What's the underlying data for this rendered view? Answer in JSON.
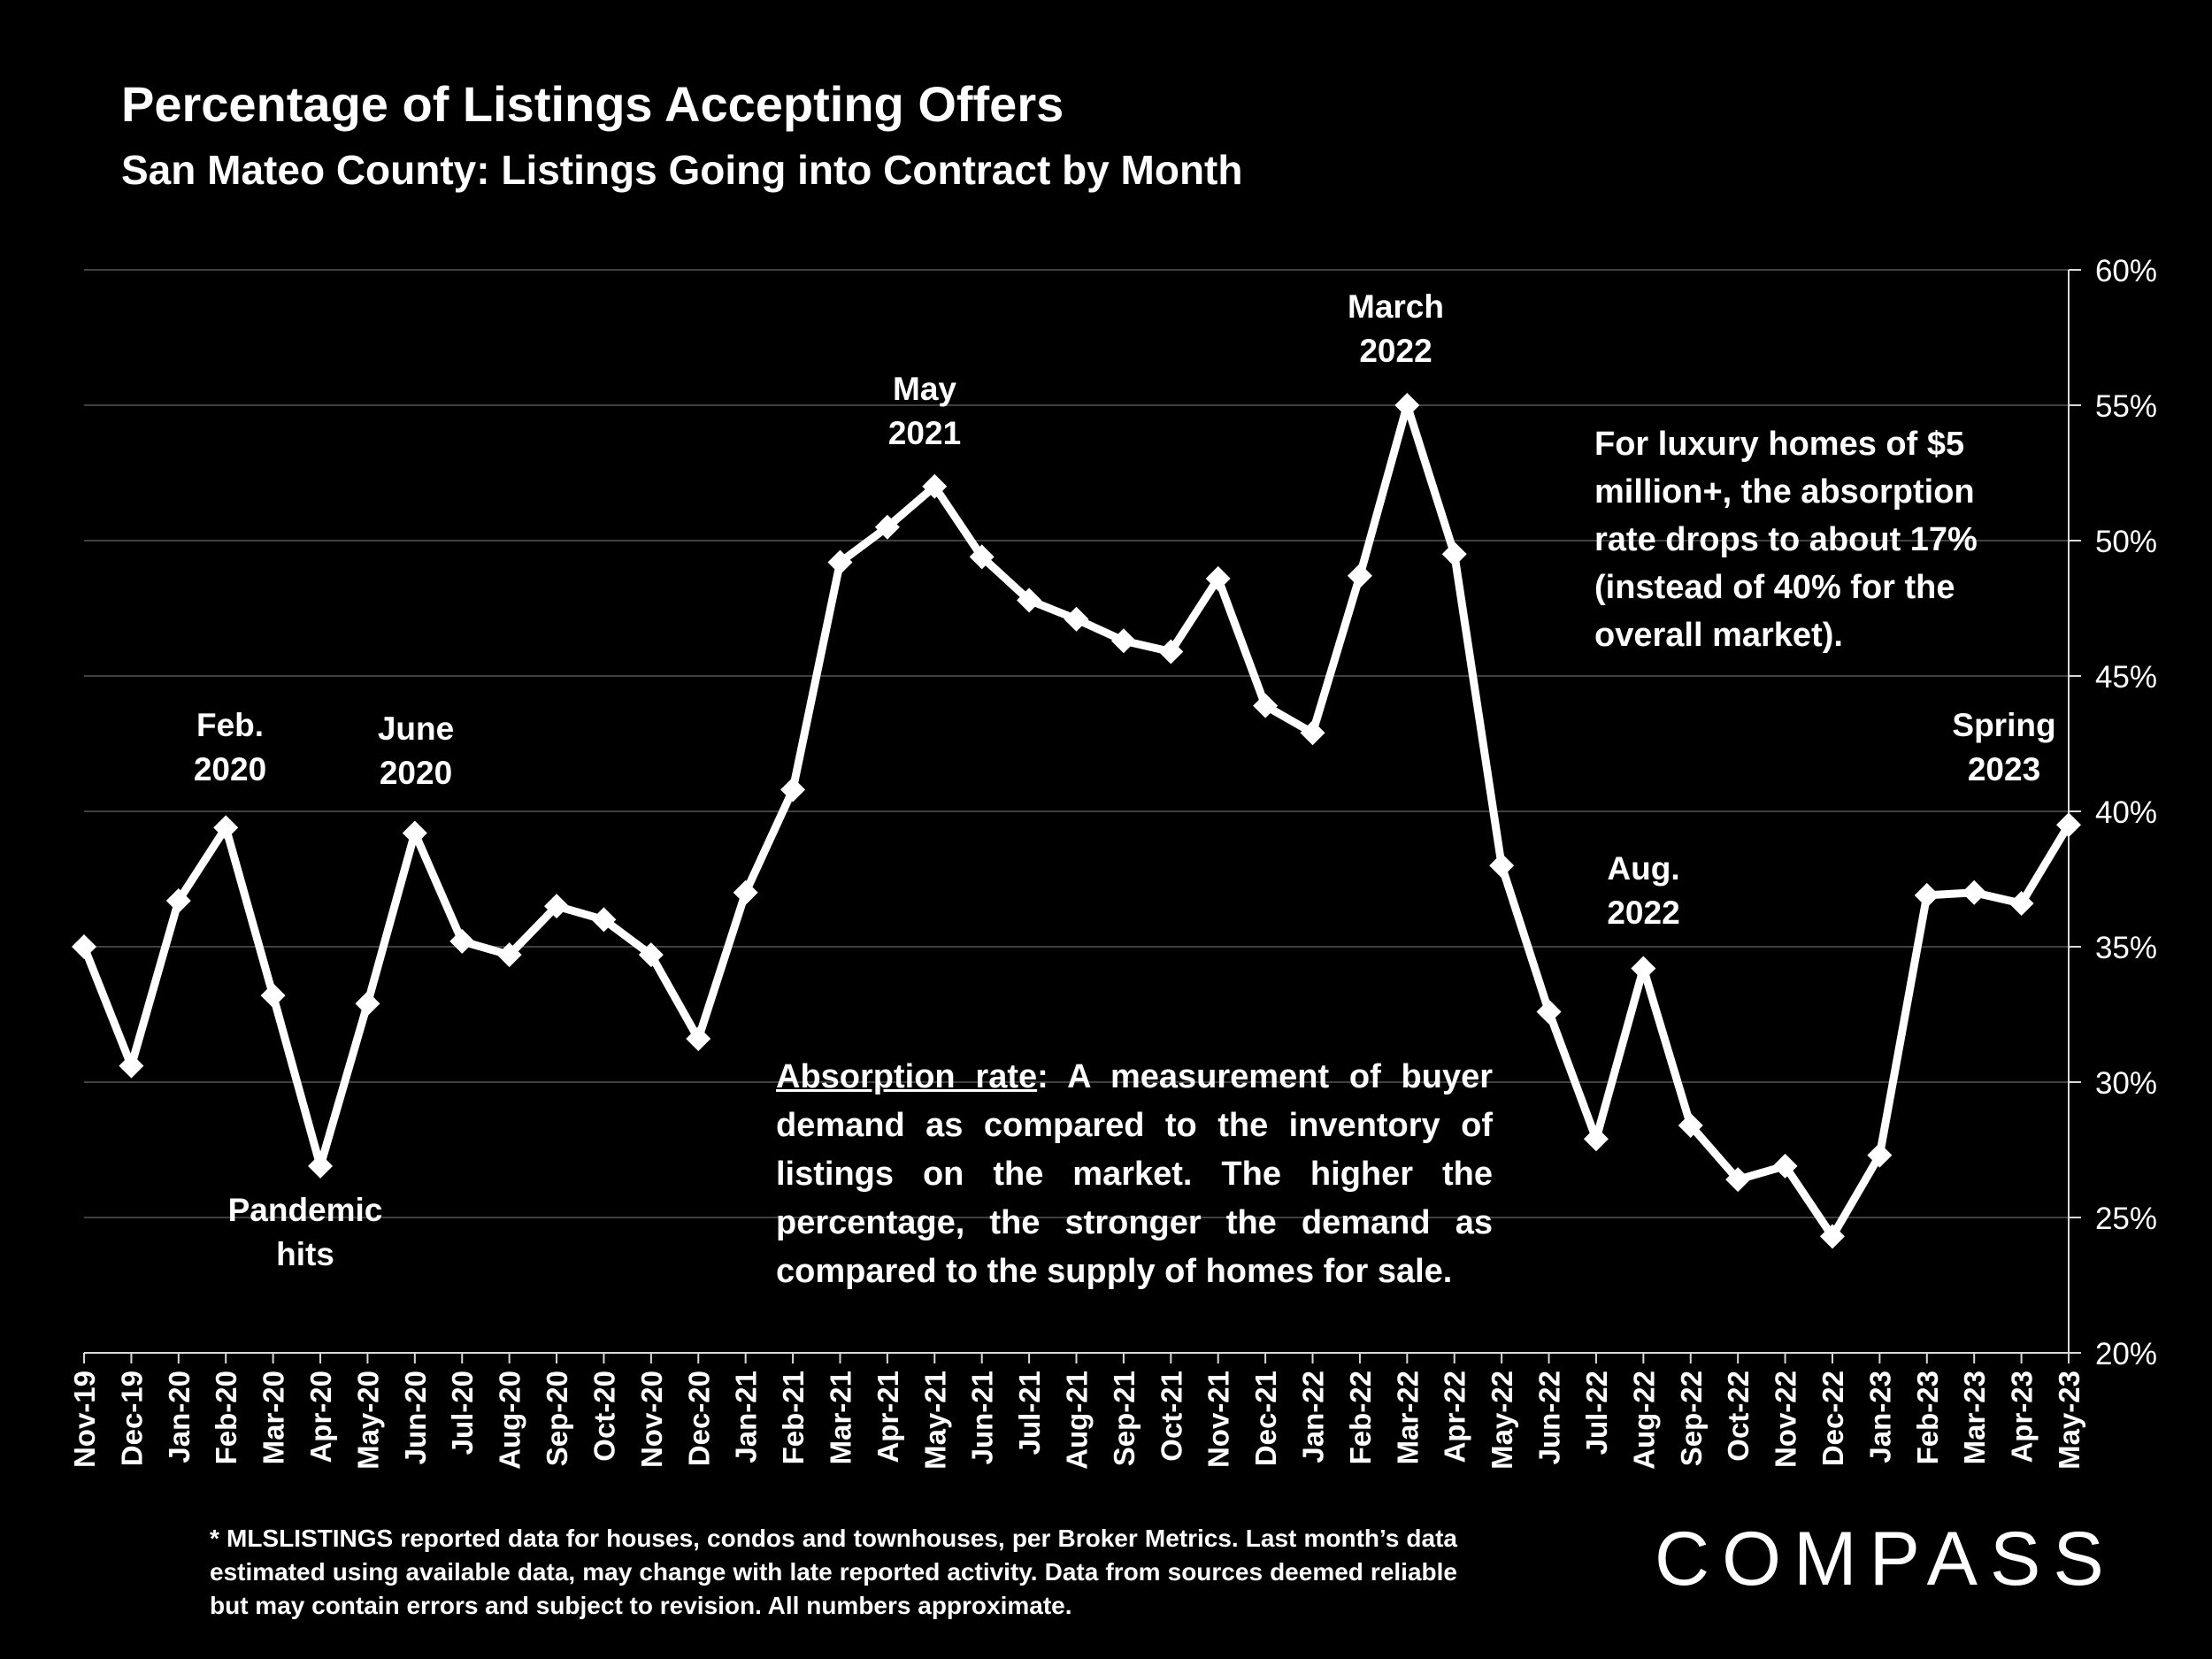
{
  "title": "Percentage of Listings Accepting Offers",
  "subtitle": "San Mateo County: Listings Going into Contract by Month",
  "annotations": {
    "feb2020": "Feb.\n2020",
    "jun2020": "June\n2020",
    "pandemic": "Pandemic\nhits",
    "may2021": "May\n2021",
    "mar2022": "March\n2022",
    "aug2022": "Aug.\n2022",
    "spring2023": "Spring\n2023"
  },
  "luxury_note": "For luxury homes of $5 million+, the absorption rate drops to about 17% (instead of 40% for the overall market).",
  "absorption": {
    "term": "Absorption rate",
    "definition": ":  A measurement of buyer demand as compared to the inventory of listings on the market. The higher the percentage, the stronger the demand as compared to the supply of homes for sale."
  },
  "footnote": "* MLSLISTINGS reported data for houses, condos and townhouses, per Broker Metrics. Last month’s data estimated using available data, may change with late reported activity. Data from sources deemed reliable but may contain errors and subject to revision. All numbers approximate.",
  "logo_text": "COMPASS",
  "colors": {
    "background": "#000000",
    "line": "#ffffff",
    "grid": "#404040"
  },
  "chart_data": {
    "type": "line",
    "title": "Percentage of Listings Accepting Offers",
    "subtitle": "San Mateo County: Listings Going into Contract by Month",
    "xlabel": "",
    "ylabel": "",
    "ylim": [
      20,
      60
    ],
    "yticks": [
      "20%",
      "25%",
      "30%",
      "35%",
      "40%",
      "45%",
      "50%",
      "55%",
      "60%"
    ],
    "y_axis_side": "right",
    "grid": true,
    "categories": [
      "Nov-19",
      "Dec-19",
      "Jan-20",
      "Feb-20",
      "Mar-20",
      "Apr-20",
      "May-20",
      "Jun-20",
      "Jul-20",
      "Aug-20",
      "Sep-20",
      "Oct-20",
      "Nov-20",
      "Dec-20",
      "Jan-21",
      "Feb-21",
      "Mar-21",
      "Apr-21",
      "May-21",
      "Jun-21",
      "Jul-21",
      "Aug-21",
      "Sep-21",
      "Oct-21",
      "Nov-21",
      "Dec-21",
      "Jan-22",
      "Feb-22",
      "Mar-22",
      "Apr-22",
      "May-22",
      "Jun-22",
      "Jul-22",
      "Aug-22",
      "Sep-22",
      "Oct-22",
      "Nov-22",
      "Dec-22",
      "Jan-23",
      "Feb-23",
      "Mar-23",
      "Apr-23",
      "May-23"
    ],
    "series": [
      {
        "values": [
          35.0,
          30.6,
          36.7,
          39.4,
          33.2,
          26.9,
          32.9,
          39.2,
          35.2,
          34.7,
          36.5,
          36.0,
          34.7,
          31.6,
          37.0,
          40.8,
          49.2,
          50.5,
          52.0,
          49.4,
          47.8,
          47.1,
          46.3,
          45.9,
          48.6,
          43.9,
          42.9,
          48.7,
          55.0,
          49.5,
          38.0,
          32.6,
          27.9,
          34.2,
          28.4,
          26.4,
          26.9,
          24.3,
          27.3,
          36.9,
          37.0,
          36.6,
          39.5
        ]
      }
    ]
  }
}
